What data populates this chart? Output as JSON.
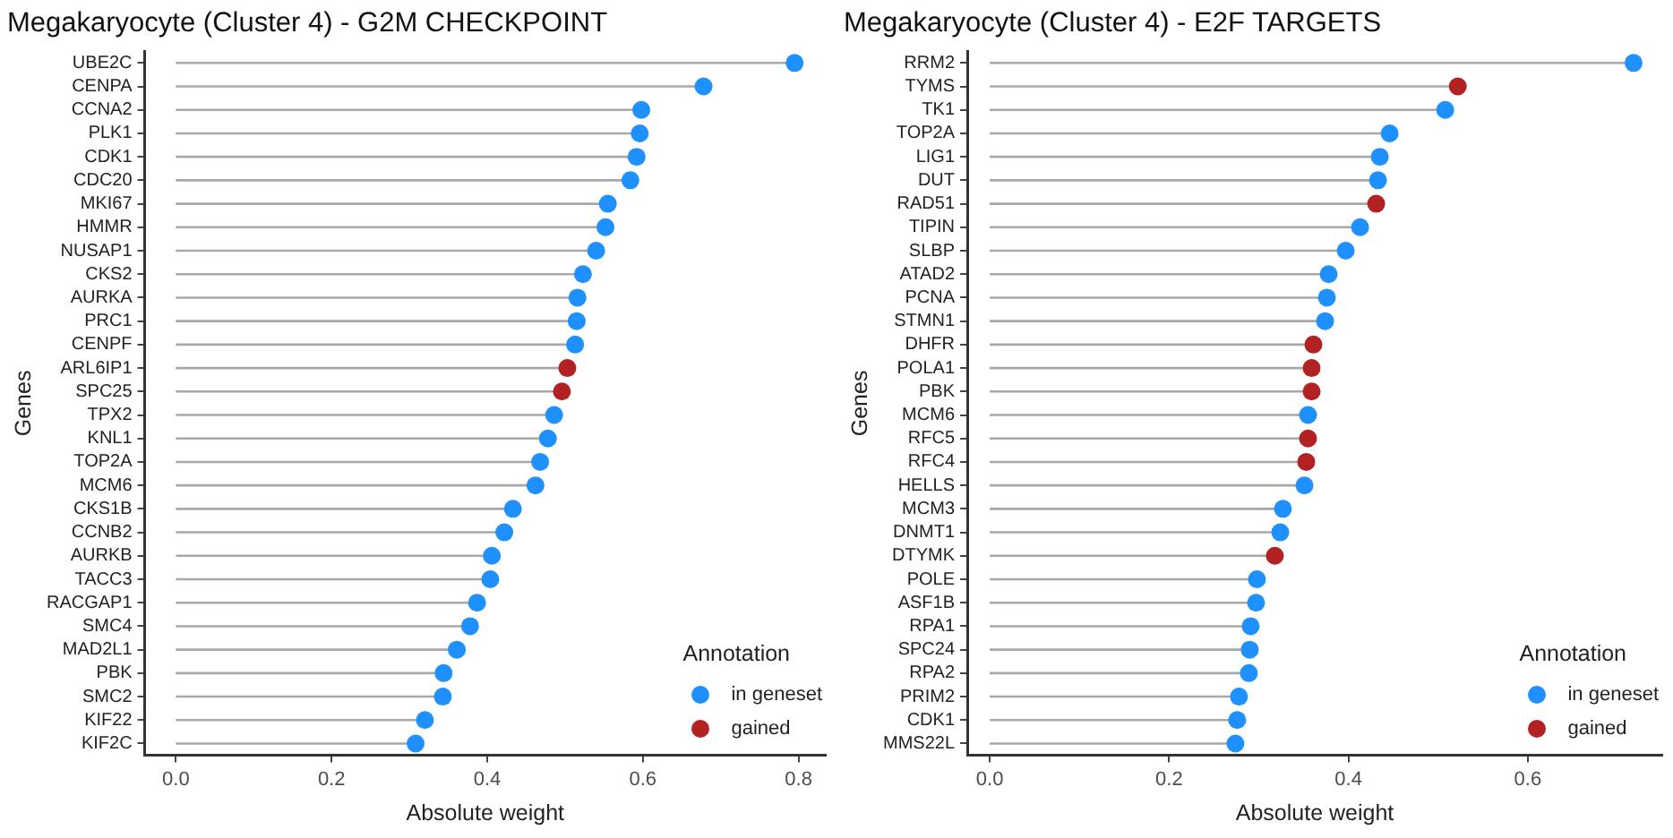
{
  "chart_data": [
    {
      "type": "lollipop",
      "orientation": "horizontal",
      "title": "Megakaryocyte (Cluster 4) - G2M CHECKPOINT",
      "xlabel": "Absolute weight",
      "ylabel": "Genes",
      "legend_title": "Annotation",
      "legend": "bottom right",
      "grid": false,
      "marker": "circle",
      "categories": [
        "UBE2C",
        "CENPA",
        "CCNA2",
        "PLK1",
        "CDK1",
        "CDC20",
        "MKI67",
        "HMMR",
        "NUSAP1",
        "CKS2",
        "AURKA",
        "PRC1",
        "CENPF",
        "ARL6IP1",
        "SPC25",
        "TPX2",
        "KNL1",
        "TOP2A",
        "MCM6",
        "CKS1B",
        "CCNB2",
        "AURKB",
        "TACC3",
        "RACGAP1",
        "SMC4",
        "MAD2L1",
        "PBK",
        "SMC2",
        "KIF22",
        "KIF2C"
      ],
      "xlim": [
        -0.04,
        0.835
      ],
      "xticks": [
        {
          "value": 0,
          "label": "0.0"
        },
        {
          "value": 0.2,
          "label": "0.2"
        },
        {
          "value": 0.4,
          "label": "0.4"
        },
        {
          "value": 0.6,
          "label": "0.6"
        },
        {
          "value": 0.8,
          "label": "0.8"
        }
      ],
      "series": [
        {
          "name": "in geneset",
          "color": "#1e90ff",
          "values": [
            0.795,
            0.678,
            0.598,
            0.596,
            0.592,
            0.584,
            0.555,
            0.552,
            0.54,
            0.523,
            0.516,
            0.515,
            0.513,
            null,
            null,
            0.486,
            0.478,
            0.468,
            0.462,
            0.433,
            0.422,
            0.406,
            0.404,
            0.387,
            0.378,
            0.361,
            0.344,
            0.343,
            0.32,
            0.308
          ]
        },
        {
          "name": "gained",
          "color": "#b22222",
          "values": [
            null,
            null,
            null,
            null,
            null,
            null,
            null,
            null,
            null,
            null,
            null,
            null,
            null,
            0.503,
            0.496,
            null,
            null,
            null,
            null,
            null,
            null,
            null,
            null,
            null,
            null,
            null,
            null,
            null,
            null,
            null
          ]
        }
      ]
    },
    {
      "type": "lollipop",
      "orientation": "horizontal",
      "title": "Megakaryocyte (Cluster 4) - E2F TARGETS",
      "xlabel": "Absolute weight",
      "ylabel": "Genes",
      "legend_title": "Annotation",
      "legend": "bottom right",
      "grid": false,
      "marker": "circle",
      "categories": [
        "RRM2",
        "TYMS",
        "TK1",
        "TOP2A",
        "LIG1",
        "DUT",
        "RAD51",
        "TIPIN",
        "SLBP",
        "ATAD2",
        "PCNA",
        "STMN1",
        "DHFR",
        "POLA1",
        "PBK",
        "MCM6",
        "RFC5",
        "RFC4",
        "HELLS",
        "MCM3",
        "DNMT1",
        "DTYMK",
        "POLE",
        "ASF1B",
        "RPA1",
        "SPC24",
        "RPA2",
        "PRIM2",
        "CDK1",
        "MMS22L"
      ],
      "xlim": [
        -0.025,
        0.75
      ],
      "xticks": [
        {
          "value": 0,
          "label": "0.0"
        },
        {
          "value": 0.2,
          "label": "0.2"
        },
        {
          "value": 0.4,
          "label": "0.4"
        },
        {
          "value": 0.6,
          "label": "0.6"
        }
      ],
      "series": [
        {
          "name": "in geneset",
          "color": "#1e90ff",
          "values": [
            0.718,
            null,
            0.508,
            0.446,
            0.435,
            0.433,
            null,
            0.413,
            0.397,
            0.378,
            0.376,
            0.374,
            null,
            null,
            null,
            0.355,
            null,
            null,
            0.351,
            0.327,
            0.324,
            null,
            0.298,
            0.297,
            0.291,
            0.29,
            0.289,
            0.278,
            0.276,
            0.274
          ]
        },
        {
          "name": "gained",
          "color": "#b22222",
          "values": [
            null,
            0.522,
            null,
            null,
            null,
            null,
            0.431,
            null,
            null,
            null,
            null,
            null,
            0.361,
            0.359,
            0.359,
            null,
            0.355,
            0.353,
            null,
            null,
            null,
            0.318,
            null,
            null,
            null,
            null,
            null,
            null,
            null,
            null
          ]
        }
      ]
    }
  ]
}
